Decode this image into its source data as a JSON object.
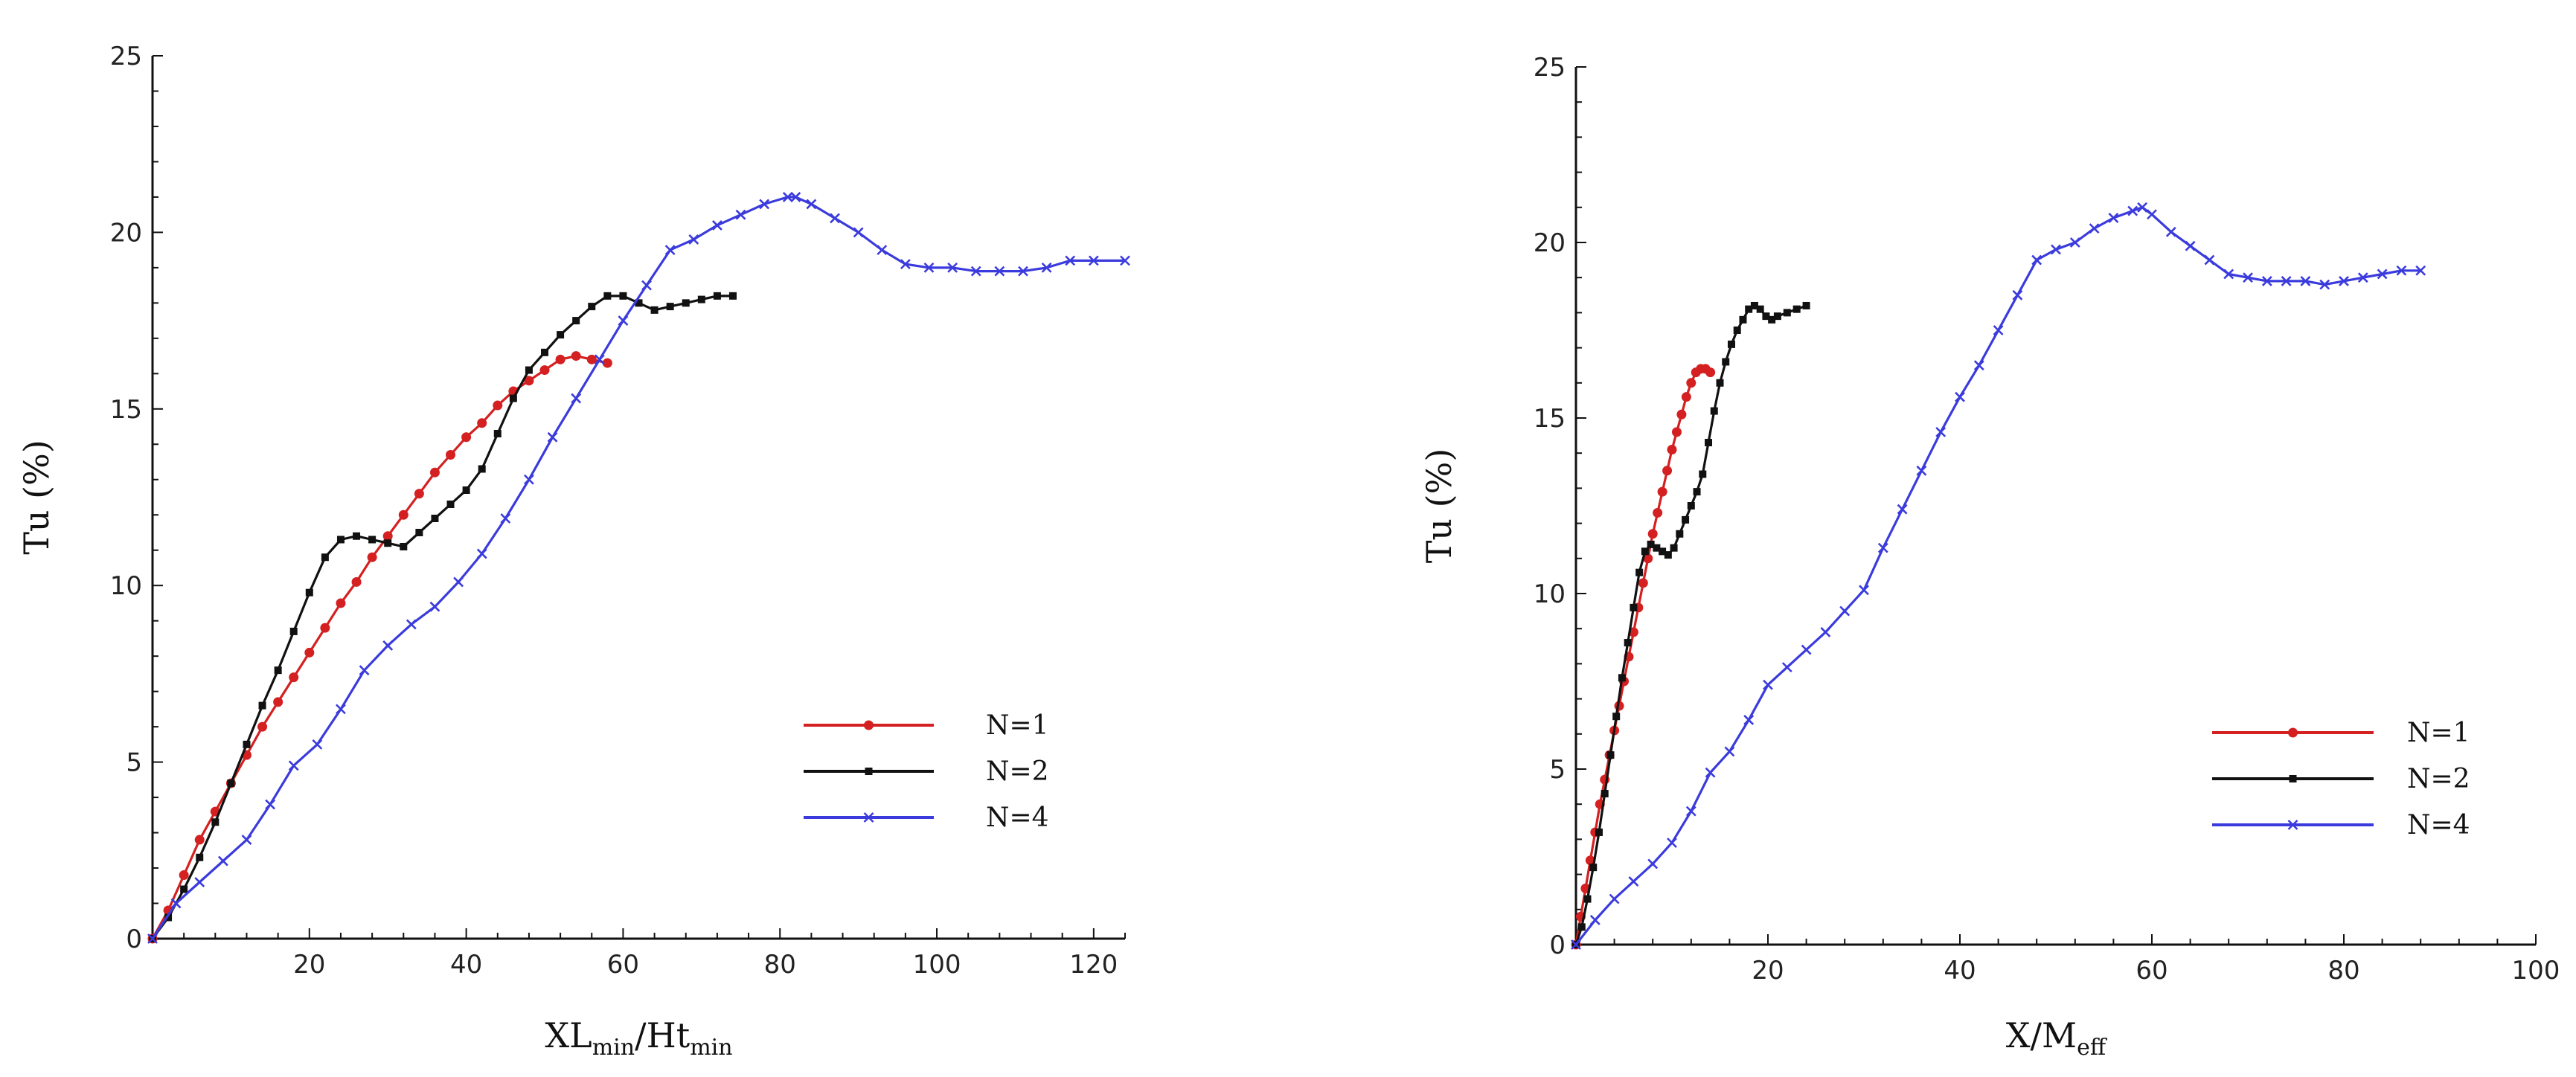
{
  "chart_data": [
    {
      "type": "line",
      "title": "",
      "xlabel": "XL",
      "xlabel_sub1": "min",
      "xlabel_mid": "/Ht",
      "xlabel_sub2": "min",
      "ylabel": "Tu (%)",
      "xlim": [
        0,
        124
      ],
      "ylim": [
        0,
        25
      ],
      "xticks": [
        20,
        40,
        60,
        80,
        100,
        120
      ],
      "xtick_labels": [
        "20",
        "40",
        "60",
        "80",
        "100",
        "120"
      ],
      "yticks": [
        0,
        5,
        10,
        15,
        20,
        25
      ],
      "ytick_labels": [
        "0",
        "5",
        "10",
        "15",
        "20",
        "25"
      ],
      "legend_position": "bottom-right",
      "series": [
        {
          "name": "N=1",
          "color": "#d42020",
          "marker": "circle",
          "x": [
            0,
            2,
            4,
            6,
            8,
            10,
            12,
            14,
            16,
            18,
            20,
            22,
            24,
            26,
            28,
            30,
            32,
            34,
            36,
            38,
            40,
            42,
            44,
            46,
            48,
            50,
            52,
            54,
            56,
            58
          ],
          "y": [
            0,
            0.8,
            1.8,
            2.8,
            3.6,
            4.4,
            5.2,
            6.0,
            6.7,
            7.4,
            8.1,
            8.8,
            9.5,
            10.1,
            10.8,
            11.4,
            12.0,
            12.6,
            13.2,
            13.7,
            14.2,
            14.6,
            15.1,
            15.5,
            15.8,
            16.1,
            16.4,
            16.5,
            16.4,
            16.3
          ]
        },
        {
          "name": "N=2",
          "color": "#111111",
          "marker": "square",
          "x": [
            0,
            2,
            4,
            6,
            8,
            10,
            12,
            14,
            16,
            18,
            20,
            22,
            24,
            26,
            28,
            30,
            32,
            34,
            36,
            38,
            40,
            42,
            44,
            46,
            48,
            50,
            52,
            54,
            56,
            58,
            60,
            62,
            64,
            66,
            68,
            70,
            72,
            74
          ],
          "y": [
            0,
            0.6,
            1.4,
            2.3,
            3.3,
            4.4,
            5.5,
            6.6,
            7.6,
            8.7,
            9.8,
            10.8,
            11.3,
            11.4,
            11.3,
            11.2,
            11.1,
            11.5,
            11.9,
            12.3,
            12.7,
            13.3,
            14.3,
            15.3,
            16.1,
            16.6,
            17.1,
            17.5,
            17.9,
            18.2,
            18.2,
            18.0,
            17.8,
            17.9,
            18.0,
            18.1,
            18.2,
            18.2
          ]
        },
        {
          "name": "N=4",
          "color": "#3b3bdd",
          "marker": "x",
          "x": [
            0,
            3,
            6,
            9,
            12,
            15,
            18,
            21,
            24,
            27,
            30,
            33,
            36,
            39,
            42,
            45,
            48,
            51,
            54,
            57,
            60,
            63,
            66,
            69,
            72,
            75,
            78,
            81,
            82,
            84,
            87,
            90,
            93,
            96,
            99,
            102,
            105,
            108,
            111,
            114,
            117,
            120,
            124
          ],
          "y": [
            0,
            1.0,
            1.6,
            2.2,
            2.8,
            3.8,
            4.9,
            5.5,
            6.5,
            7.6,
            8.3,
            8.9,
            9.4,
            10.1,
            10.9,
            11.9,
            13.0,
            14.2,
            15.3,
            16.4,
            17.5,
            18.5,
            19.5,
            19.8,
            20.2,
            20.5,
            20.8,
            21.0,
            21.0,
            20.8,
            20.4,
            20.0,
            19.5,
            19.1,
            19.0,
            19.0,
            18.9,
            18.9,
            18.9,
            19.0,
            19.2,
            19.2,
            19.2
          ]
        }
      ]
    },
    {
      "type": "line",
      "title": "",
      "xlabel": "X/M",
      "xlabel_sub": "eff",
      "ylabel": "Tu (%)",
      "xlim": [
        0,
        100
      ],
      "ylim": [
        0,
        25
      ],
      "xticks": [
        20,
        40,
        60,
        80,
        100
      ],
      "xtick_labels": [
        "20",
        "40",
        "60",
        "80",
        "100"
      ],
      "yticks": [
        0,
        5,
        10,
        15,
        20,
        25
      ],
      "ytick_labels": [
        "0",
        "5",
        "10",
        "15",
        "20",
        "25"
      ],
      "legend_position": "bottom-right",
      "series": [
        {
          "name": "N=1",
          "color": "#d42020",
          "marker": "circle",
          "x": [
            0,
            0.5,
            1,
            1.5,
            2,
            2.5,
            3,
            3.5,
            4,
            4.5,
            5,
            5.5,
            6,
            6.5,
            7,
            7.5,
            8,
            8.5,
            9,
            9.5,
            10,
            10.5,
            11,
            11.5,
            12,
            12.5,
            13,
            13.5,
            14
          ],
          "y": [
            0,
            0.8,
            1.6,
            2.4,
            3.2,
            4.0,
            4.7,
            5.4,
            6.1,
            6.8,
            7.5,
            8.2,
            8.9,
            9.6,
            10.3,
            11.0,
            11.7,
            12.3,
            12.9,
            13.5,
            14.1,
            14.6,
            15.1,
            15.6,
            16.0,
            16.3,
            16.4,
            16.4,
            16.3
          ]
        },
        {
          "name": "N=2",
          "color": "#111111",
          "marker": "square",
          "x": [
            0,
            0.6,
            1.2,
            1.8,
            2.4,
            3,
            3.6,
            4.2,
            4.8,
            5.4,
            6,
            6.6,
            7.2,
            7.8,
            8.4,
            9,
            9.6,
            10.2,
            10.8,
            11.4,
            12,
            12.6,
            13.2,
            13.8,
            14.4,
            15,
            15.6,
            16.2,
            16.8,
            17.4,
            18,
            18.6,
            19.2,
            19.8,
            20.4,
            21,
            22,
            23,
            24
          ],
          "y": [
            0,
            0.5,
            1.3,
            2.2,
            3.2,
            4.3,
            5.4,
            6.5,
            7.6,
            8.6,
            9.6,
            10.6,
            11.2,
            11.4,
            11.3,
            11.2,
            11.1,
            11.3,
            11.7,
            12.1,
            12.5,
            12.9,
            13.4,
            14.3,
            15.2,
            16.0,
            16.6,
            17.1,
            17.5,
            17.8,
            18.1,
            18.2,
            18.1,
            17.9,
            17.8,
            17.9,
            18.0,
            18.1,
            18.2
          ]
        },
        {
          "name": "N=4",
          "color": "#3b3bdd",
          "marker": "x",
          "x": [
            0,
            2,
            4,
            6,
            8,
            10,
            12,
            14,
            16,
            18,
            20,
            22,
            24,
            26,
            28,
            30,
            32,
            34,
            36,
            38,
            40,
            42,
            44,
            46,
            48,
            50,
            52,
            54,
            56,
            58,
            59,
            60,
            62,
            64,
            66,
            68,
            70,
            72,
            74,
            76,
            78,
            80,
            82,
            84,
            86,
            88
          ],
          "y": [
            0,
            0.7,
            1.3,
            1.8,
            2.3,
            2.9,
            3.8,
            4.9,
            5.5,
            6.4,
            7.4,
            7.9,
            8.4,
            8.9,
            9.5,
            10.1,
            11.3,
            12.4,
            13.5,
            14.6,
            15.6,
            16.5,
            17.5,
            18.5,
            19.5,
            19.8,
            20.0,
            20.4,
            20.7,
            20.9,
            21.0,
            20.8,
            20.3,
            19.9,
            19.5,
            19.1,
            19.0,
            18.9,
            18.9,
            18.9,
            18.8,
            18.9,
            19.0,
            19.1,
            19.2,
            19.2
          ]
        }
      ]
    }
  ]
}
